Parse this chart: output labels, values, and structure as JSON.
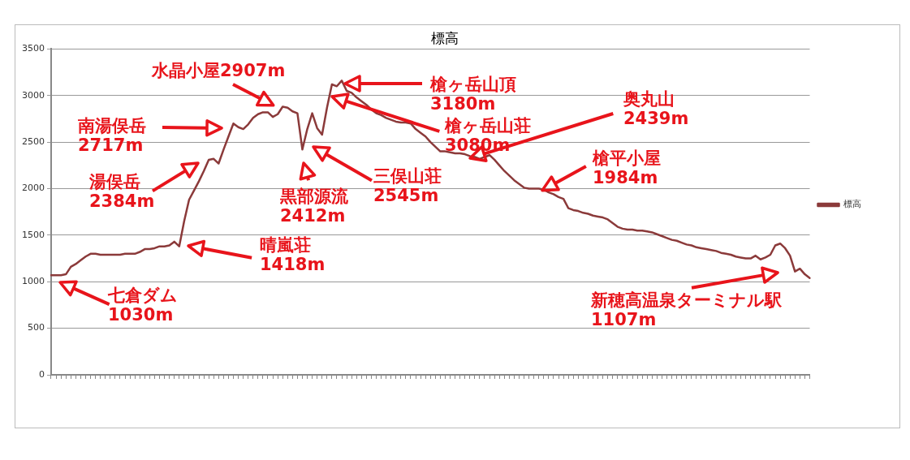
{
  "chart_data": {
    "type": "line",
    "title": "標高",
    "categories": [
      null,
      null,
      null,
      null,
      null,
      null,
      null,
      null,
      null,
      null,
      null,
      null,
      null,
      null,
      null,
      null,
      null,
      null,
      null,
      null,
      null,
      null,
      null,
      null,
      null,
      null,
      null,
      null,
      null,
      null,
      null,
      null,
      null,
      null,
      null,
      null,
      null,
      null,
      null,
      null,
      null,
      null,
      null,
      null,
      null,
      null,
      null,
      null,
      null,
      null,
      null,
      null,
      null,
      null,
      null,
      null,
      null,
      null,
      null,
      null,
      null,
      null,
      null,
      null,
      null,
      null,
      null,
      null,
      null,
      null,
      null,
      null,
      null,
      null,
      null,
      null,
      null,
      null,
      null,
      null,
      null,
      null,
      null,
      null,
      null,
      null,
      null,
      null,
      null,
      null,
      null,
      null,
      null,
      null,
      null,
      null,
      null,
      null,
      null,
      null,
      null,
      null,
      null,
      null,
      null,
      null,
      null,
      null,
      null,
      null,
      null,
      null,
      null,
      null,
      null,
      null,
      null,
      null,
      null,
      null,
      null,
      null,
      null,
      null,
      null,
      null,
      null,
      null,
      null,
      null,
      null,
      null,
      null,
      null,
      null,
      null,
      null,
      null,
      null,
      null,
      null,
      null,
      null,
      null,
      null,
      null,
      null,
      null,
      null,
      null,
      null,
      null,
      null,
      null,
      null
    ],
    "series": [
      {
        "name": "標高",
        "color": "#8b3a3a",
        "values": [
          1070,
          1070,
          1070,
          1080,
          1160,
          1190,
          1230,
          1270,
          1300,
          1300,
          1290,
          1290,
          1290,
          1290,
          1290,
          1300,
          1300,
          1300,
          1320,
          1350,
          1350,
          1360,
          1380,
          1380,
          1390,
          1430,
          1380,
          1650,
          1880,
          1980,
          2080,
          2190,
          2310,
          2320,
          2270,
          2420,
          2560,
          2700,
          2660,
          2640,
          2690,
          2760,
          2800,
          2820,
          2820,
          2770,
          2800,
          2880,
          2870,
          2830,
          2810,
          2420,
          2640,
          2810,
          2650,
          2580,
          2870,
          3120,
          3100,
          3160,
          3050,
          3030,
          2980,
          2940,
          2900,
          2850,
          2810,
          2790,
          2760,
          2740,
          2720,
          2710,
          2710,
          2700,
          2640,
          2600,
          2560,
          2500,
          2450,
          2400,
          2400,
          2390,
          2380,
          2380,
          2370,
          2350,
          2340,
          2320,
          2340,
          2360,
          2310,
          2250,
          2190,
          2140,
          2090,
          2050,
          2010,
          2000,
          2000,
          2000,
          1990,
          1960,
          1940,
          1910,
          1890,
          1790,
          1770,
          1760,
          1740,
          1730,
          1710,
          1700,
          1690,
          1670,
          1630,
          1590,
          1570,
          1560,
          1560,
          1550,
          1550,
          1540,
          1530,
          1510,
          1490,
          1470,
          1450,
          1440,
          1420,
          1400,
          1390,
          1370,
          1360,
          1350,
          1340,
          1330,
          1310,
          1300,
          1290,
          1270,
          1260,
          1250,
          1250,
          1280,
          1240,
          1260,
          1290,
          1390,
          1410,
          1360,
          1280,
          1110,
          1140,
          1080,
          1040
        ]
      }
    ],
    "ylim": [
      0,
      3500
    ],
    "yticks": [
      0,
      500,
      1000,
      1500,
      2000,
      2500,
      3000,
      3500
    ],
    "grid": "y",
    "legend": "right",
    "tick_labels": "y",
    "marker": "none",
    "annotations": [
      "七倉ダム\n1030m",
      "晴嵐荘\n1418m",
      "湯俣岳\n2384m",
      "南湯俣岳\n2717m",
      "水晶小屋2907m",
      "黒部源流\n2412m",
      "三俣山荘\n2545m",
      "槍ヶ岳山頂\n3180m",
      "槍ヶ岳山荘\n3080m",
      "奥丸山\n2439m",
      "槍平小屋\n1984m",
      "新穂高温泉ターミナル駅\n1107m"
    ]
  }
}
